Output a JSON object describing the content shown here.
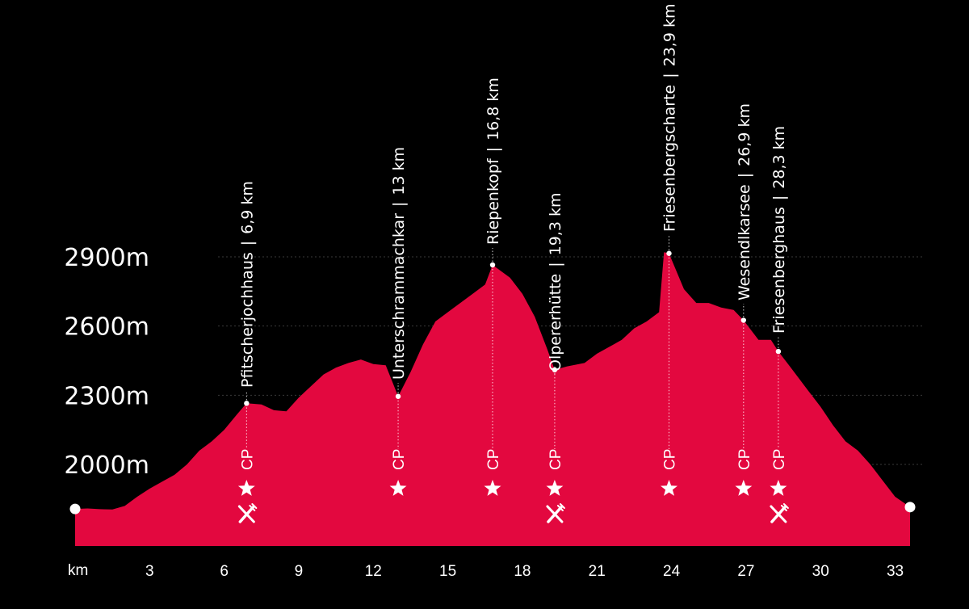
{
  "chart_data": {
    "type": "area",
    "x_axis": {
      "label": "km",
      "ticks": [
        3,
        6,
        9,
        12,
        15,
        18,
        21,
        24,
        27,
        30,
        33
      ],
      "range": [
        0,
        33.6
      ]
    },
    "y_axis": {
      "ticks": [
        2000,
        2300,
        2600,
        2900
      ],
      "tick_labels": [
        "2000m",
        "2300m",
        "2600m",
        "2900m"
      ],
      "range": [
        1780,
        2950
      ],
      "gridlines": true
    },
    "colors": {
      "fill": "#e3083f",
      "background": "#000000",
      "text": "#ffffff"
    },
    "series": [
      {
        "values": [
          [
            0,
            1807
          ],
          [
            0.5,
            1809
          ],
          [
            1.0,
            1806
          ],
          [
            1.5,
            1805
          ],
          [
            2.0,
            1820
          ],
          [
            2.5,
            1860
          ],
          [
            3.0,
            1895
          ],
          [
            3.5,
            1925
          ],
          [
            4.0,
            1955
          ],
          [
            4.5,
            2000
          ],
          [
            5.0,
            2060
          ],
          [
            5.5,
            2100
          ],
          [
            6.0,
            2150
          ],
          [
            6.5,
            2215
          ],
          [
            6.9,
            2265
          ],
          [
            7.5,
            2260
          ],
          [
            8.0,
            2235
          ],
          [
            8.5,
            2230
          ],
          [
            9.0,
            2290
          ],
          [
            9.5,
            2340
          ],
          [
            10.0,
            2390
          ],
          [
            10.5,
            2420
          ],
          [
            11.0,
            2440
          ],
          [
            11.5,
            2455
          ],
          [
            12.0,
            2435
          ],
          [
            12.5,
            2430
          ],
          [
            13.0,
            2295
          ],
          [
            13.5,
            2400
          ],
          [
            14.0,
            2520
          ],
          [
            14.5,
            2620
          ],
          [
            15.0,
            2660
          ],
          [
            15.5,
            2700
          ],
          [
            16.0,
            2740
          ],
          [
            16.5,
            2780
          ],
          [
            16.8,
            2865
          ],
          [
            17.5,
            2810
          ],
          [
            18.0,
            2740
          ],
          [
            18.5,
            2640
          ],
          [
            19.0,
            2500
          ],
          [
            19.3,
            2410
          ],
          [
            19.8,
            2425
          ],
          [
            20.5,
            2440
          ],
          [
            21.0,
            2480
          ],
          [
            21.5,
            2510
          ],
          [
            22.0,
            2540
          ],
          [
            22.5,
            2590
          ],
          [
            23.0,
            2620
          ],
          [
            23.5,
            2660
          ],
          [
            23.7,
            2920
          ],
          [
            23.9,
            2915
          ],
          [
            24.5,
            2760
          ],
          [
            25.0,
            2700
          ],
          [
            25.5,
            2700
          ],
          [
            26.0,
            2680
          ],
          [
            26.5,
            2670
          ],
          [
            26.9,
            2625
          ],
          [
            27.5,
            2540
          ],
          [
            28.0,
            2540
          ],
          [
            28.3,
            2490
          ],
          [
            28.8,
            2420
          ],
          [
            29.5,
            2320
          ],
          [
            30.0,
            2250
          ],
          [
            30.5,
            2170
          ],
          [
            31.0,
            2100
          ],
          [
            31.5,
            2060
          ],
          [
            32.0,
            2000
          ],
          [
            32.5,
            1930
          ],
          [
            33.0,
            1860
          ],
          [
            33.6,
            1815
          ]
        ]
      }
    ],
    "waypoints": [
      {
        "name": "Pfitscherjochhaus",
        "km": 6.9,
        "km_label": "6,9 km",
        "elevation": 2265,
        "cp": true,
        "star": true,
        "food": true
      },
      {
        "name": "Unterschrammachkar",
        "km": 13.0,
        "km_label": "13 km",
        "elevation": 2295,
        "cp": true,
        "star": true,
        "food": false
      },
      {
        "name": "Riepenkopf",
        "km": 16.8,
        "km_label": "16,8 km",
        "elevation": 2865,
        "cp": true,
        "star": true,
        "food": false
      },
      {
        "name": "Olpererhütte",
        "km": 19.3,
        "km_label": "19,3 km",
        "elevation": 2410,
        "cp": true,
        "star": true,
        "food": true
      },
      {
        "name": "Friesenbergscharte",
        "km": 23.9,
        "km_label": "23,9 km",
        "elevation": 2915,
        "cp": true,
        "star": true,
        "food": false
      },
      {
        "name": "Wesendlkarsee",
        "km": 26.9,
        "km_label": "26,9 km",
        "elevation": 2625,
        "cp": true,
        "star": true,
        "food": false
      },
      {
        "name": "Friesenberghaus",
        "km": 28.3,
        "km_label": "28,3 km",
        "elevation": 2490,
        "cp": true,
        "star": true,
        "food": true
      }
    ],
    "cp_label": "CP",
    "separator": "|"
  },
  "icons": {
    "star": "star-icon",
    "food": "fork-knife-icon"
  }
}
